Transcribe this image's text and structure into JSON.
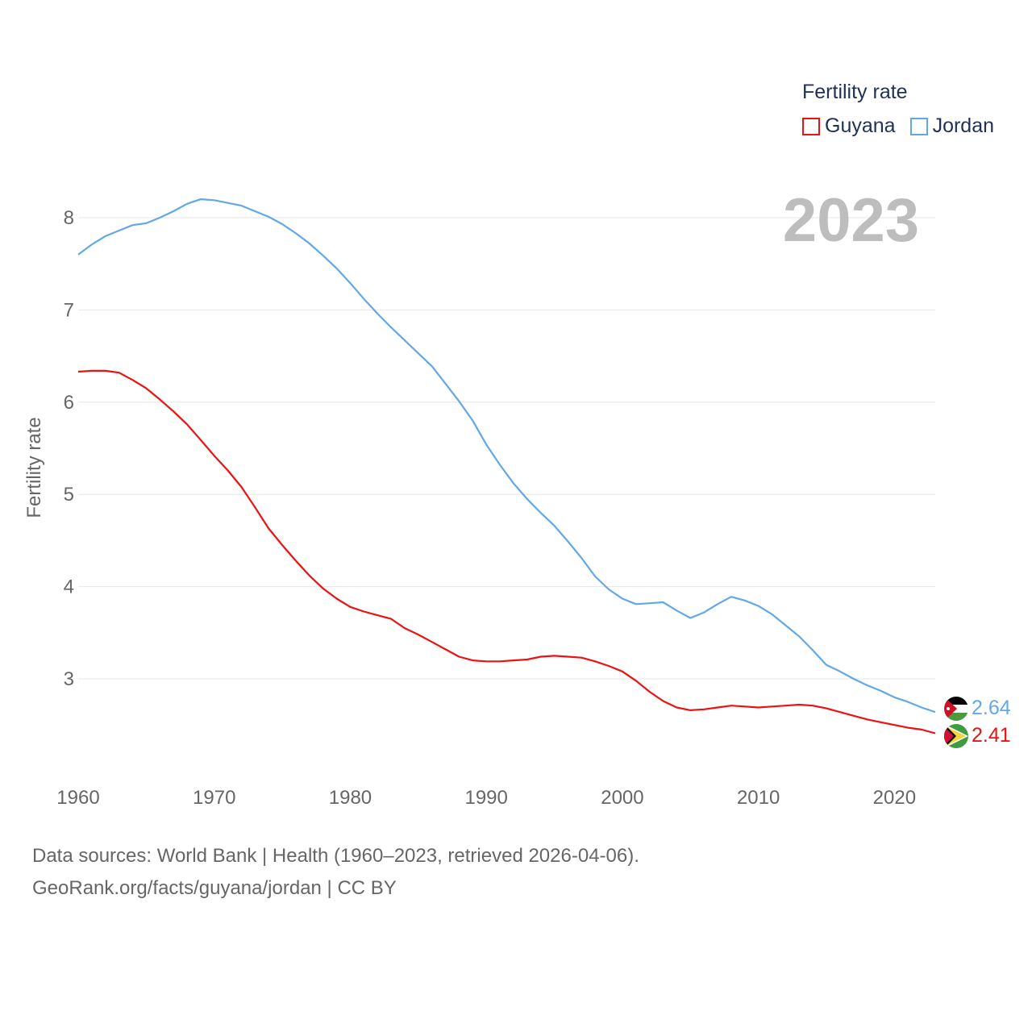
{
  "legend": {
    "title": "Fertility rate",
    "items": [
      {
        "name": "Guyana",
        "color": "#ee1111"
      },
      {
        "name": "Jordan",
        "color": "#62a8e8"
      }
    ]
  },
  "source": {
    "line1": "Data sources: World Bank | Health (1960–2023, retrieved 2026-04-06).",
    "line2": "GeoRank.org/facts/guyana/jordan | CC BY"
  },
  "chart_data": {
    "type": "line",
    "title": "Fertility rate",
    "year_label": "2023",
    "xlabel": "",
    "ylabel": "Fertility rate",
    "xlim": [
      1960,
      2023
    ],
    "ylim": [
      2.0,
      8.5
    ],
    "x_ticks": [
      1960,
      1970,
      1980,
      1990,
      2000,
      2010,
      2020
    ],
    "y_ticks": [
      3,
      4,
      5,
      6,
      7,
      8
    ],
    "grid": true,
    "legend_position": "top-right",
    "x": [
      1960,
      1961,
      1962,
      1963,
      1964,
      1965,
      1966,
      1967,
      1968,
      1969,
      1970,
      1971,
      1972,
      1973,
      1974,
      1975,
      1976,
      1977,
      1978,
      1979,
      1980,
      1981,
      1982,
      1983,
      1984,
      1985,
      1986,
      1987,
      1988,
      1989,
      1990,
      1991,
      1992,
      1993,
      1994,
      1995,
      1996,
      1997,
      1998,
      1999,
      2000,
      2001,
      2002,
      2003,
      2004,
      2005,
      2006,
      2007,
      2008,
      2009,
      2010,
      2011,
      2012,
      2013,
      2014,
      2015,
      2016,
      2017,
      2018,
      2019,
      2020,
      2021,
      2022,
      2023
    ],
    "series": [
      {
        "name": "Jordan",
        "color": "#62a8e8",
        "end_label": "2.64",
        "values": [
          7.6,
          7.71,
          7.8,
          7.86,
          7.92,
          7.94,
          8.0,
          8.07,
          8.15,
          8.2,
          8.19,
          8.16,
          8.13,
          8.07,
          8.01,
          7.93,
          7.83,
          7.72,
          7.59,
          7.45,
          7.29,
          7.12,
          6.96,
          6.81,
          6.67,
          6.53,
          6.39,
          6.2,
          6.01,
          5.8,
          5.54,
          5.32,
          5.12,
          4.95,
          4.8,
          4.66,
          4.49,
          4.31,
          4.11,
          3.97,
          3.87,
          3.81,
          3.82,
          3.83,
          3.74,
          3.66,
          3.72,
          3.81,
          3.89,
          3.85,
          3.79,
          3.7,
          3.58,
          3.46,
          3.31,
          3.15,
          3.08,
          3.0,
          2.93,
          2.87,
          2.8,
          2.75,
          2.69,
          2.64
        ]
      },
      {
        "name": "Guyana",
        "color": "#ee1111",
        "end_label": "2.41",
        "values": [
          6.33,
          6.34,
          6.34,
          6.32,
          6.24,
          6.15,
          6.03,
          5.9,
          5.76,
          5.59,
          5.42,
          5.26,
          5.08,
          4.86,
          4.63,
          4.45,
          4.28,
          4.12,
          3.98,
          3.87,
          3.78,
          3.73,
          3.69,
          3.65,
          3.55,
          3.48,
          3.4,
          3.32,
          3.24,
          3.2,
          3.19,
          3.19,
          3.2,
          3.21,
          3.24,
          3.25,
          3.24,
          3.23,
          3.19,
          3.14,
          3.08,
          2.98,
          2.86,
          2.76,
          2.69,
          2.66,
          2.67,
          2.69,
          2.71,
          2.7,
          2.69,
          2.7,
          2.71,
          2.72,
          2.71,
          2.68,
          2.64,
          2.6,
          2.56,
          2.53,
          2.5,
          2.47,
          2.45,
          2.41
        ]
      }
    ]
  }
}
